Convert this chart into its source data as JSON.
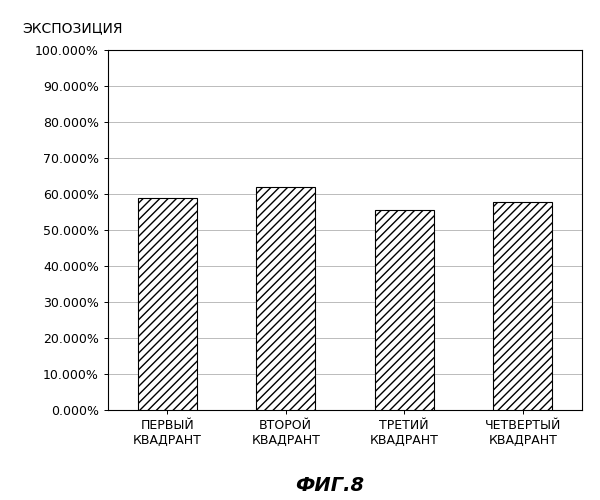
{
  "categories": [
    "ПЕРВЫЙ\nКВАДРАНТ",
    "ВТОРОЙ\nКВАДРАНТ",
    "ТРЕТИЙ\nКВАДРАНТ",
    "ЧЕТВЕРТЫЙ\nКВАДРАНТ"
  ],
  "values": [
    0.59,
    0.62,
    0.555,
    0.578
  ],
  "ylabel": "ЭКСПОЗИЦИЯ",
  "title": "ФИГ.8",
  "ylim": [
    0.0,
    1.0
  ],
  "yticks": [
    0.0,
    0.1,
    0.2,
    0.3,
    0.4,
    0.5,
    0.6,
    0.7,
    0.8,
    0.9,
    1.0
  ],
  "ytick_labels": [
    "0.000%",
    "10.000%",
    "20.000%",
    "30.000%",
    "40.000%",
    "50.000%",
    "60.000%",
    "70.000%",
    "80.000%",
    "90.000%",
    "100.000%"
  ],
  "bar_color": "#ffffff",
  "bar_edgecolor": "#000000",
  "hatch": "////",
  "background_color": "#ffffff",
  "grid_color": "#bbbbbb",
  "tick_fontsize": 9,
  "ylabel_fontsize": 10,
  "title_fontsize": 14,
  "bar_linewidth": 0.8
}
